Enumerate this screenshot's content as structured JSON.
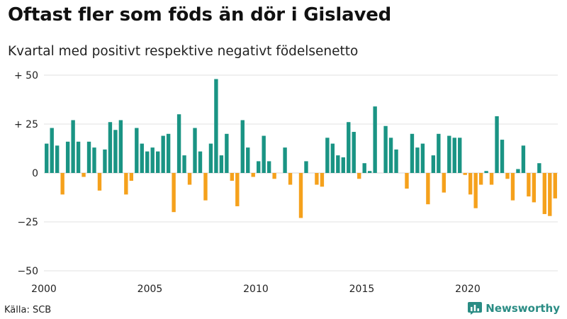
{
  "header": {
    "title": "Oftast fler som föds än dör i Gislaved",
    "subtitle": "Kvartal med positivt respektive negativt födelsenetto"
  },
  "footer": {
    "source": "Källa: SCB",
    "brand": "Newsworthy"
  },
  "colors": {
    "positive": "#1a9484",
    "negative": "#f5a11c",
    "brand": "#2a8c84"
  },
  "chart_data": {
    "type": "bar",
    "title": "Oftast fler som föds än dör i Gislaved",
    "subtitle": "Kvartal med positivt respektive negativt födelsenetto",
    "xlabel": "",
    "ylabel": "",
    "ylim": [
      -50,
      50
    ],
    "y_ticks": [
      50,
      25,
      0,
      -25,
      -50
    ],
    "y_tick_labels": [
      "+ 50",
      "+ 25",
      "0",
      "−25",
      "−50"
    ],
    "x_ticks": [
      2000,
      2005,
      2010,
      2015,
      2020
    ],
    "x_tick_labels": [
      "2000",
      "2005",
      "2010",
      "2015",
      "2020"
    ],
    "grid": true,
    "start_year": 2000,
    "start_quarter": 1,
    "values": [
      15,
      23,
      14,
      -11,
      16,
      27,
      16,
      -2,
      16,
      13,
      -9,
      12,
      26,
      22,
      27,
      -11,
      -4,
      23,
      15,
      11,
      13,
      11,
      19,
      20,
      -20,
      30,
      9,
      -6,
      23,
      11,
      -14,
      15,
      48,
      9,
      20,
      -4,
      -17,
      27,
      13,
      -2,
      6,
      19,
      6,
      -3,
      0,
      13,
      -6,
      0,
      -23,
      6,
      0,
      -6,
      -7,
      18,
      15,
      9,
      8,
      26,
      21,
      -3,
      5,
      1,
      34,
      0,
      24,
      18,
      12,
      0,
      -8,
      20,
      13,
      15,
      -16,
      9,
      20,
      -10,
      19,
      18,
      18,
      -1,
      -11,
      -18,
      -6,
      1,
      -6,
      29,
      17,
      -3,
      -14,
      2,
      14,
      -12,
      -15,
      5,
      -21,
      -22,
      -13
    ]
  }
}
